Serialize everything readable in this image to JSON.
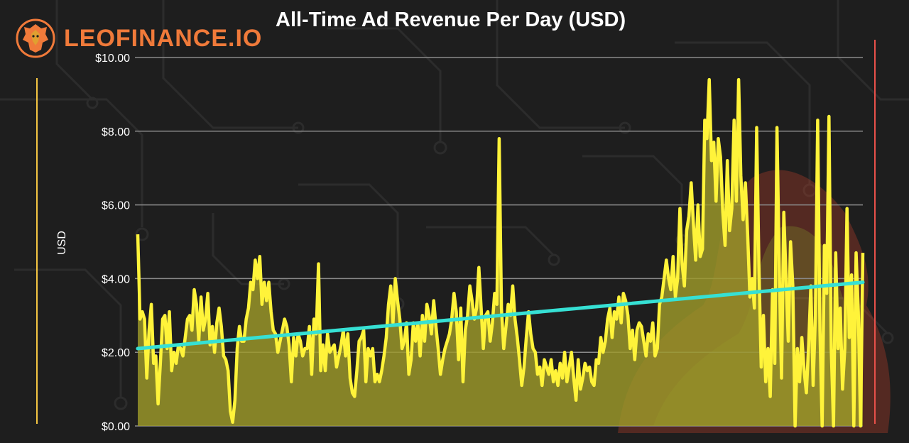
{
  "brand": {
    "name": "LEOFINANCE.IO",
    "logo_icon": "lion-icon"
  },
  "colors": {
    "background": "#1e1e1e",
    "series_line": "#fff33a",
    "series_fill": "#9e9a2a",
    "trend_line": "#36e0d4",
    "frame_start": "#f4c542",
    "frame_end": "#e8504a",
    "brand_text": "#f07a3a"
  },
  "chart_data": {
    "type": "area",
    "title": "All-Time Ad Revenue Per Day (USD)",
    "xlabel": "",
    "ylabel": "USD",
    "ylim": [
      0,
      10
    ],
    "yticks": [
      "$0.00",
      "$2.00",
      "$4.00",
      "$6.00",
      "$8.00",
      "$10.00"
    ],
    "grid": true,
    "legend": "none",
    "series": [
      {
        "values": [
          5.2,
          2.9,
          3.1,
          2.9,
          1.3,
          2.6,
          3.3,
          1.7,
          1.9,
          0.6,
          1.7,
          2.9,
          3.0,
          2.1,
          3.1,
          1.5,
          2.0,
          1.7,
          2.2,
          2.1,
          1.9,
          2.4,
          2.9,
          3.0,
          2.6,
          3.7,
          3.3,
          2.3,
          3.5,
          2.6,
          2.9,
          3.6,
          2.2,
          2.7,
          2.0,
          2.8,
          3.2,
          2.7,
          1.9,
          1.8,
          1.5,
          0.4,
          0.1,
          0.7,
          2.1,
          2.7,
          2.3,
          2.3,
          2.9,
          3.2,
          3.9,
          3.7,
          4.5,
          4.0,
          4.6,
          3.3,
          3.9,
          3.4,
          3.9,
          3.1,
          2.6,
          2.5,
          2.0,
          2.3,
          2.6,
          2.9,
          2.7,
          2.2,
          1.2,
          2.4,
          1.9,
          2.5,
          2.3,
          1.9,
          2.1,
          2.1,
          2.7,
          1.4,
          2.9,
          2.5,
          4.4,
          1.5,
          2.2,
          1.5,
          2.5,
          2.0,
          2.1,
          2.2,
          1.6,
          1.9,
          2.2,
          2.6,
          1.9,
          2.5,
          1.3,
          0.9,
          0.8,
          1.5,
          2.3,
          2.4,
          2.6,
          1.2,
          2.1,
          1.9,
          2.1,
          1.2,
          1.4,
          1.2,
          1.5,
          1.9,
          2.4,
          3.3,
          3.8,
          2.8,
          4.0,
          3.4,
          2.9,
          2.1,
          2.3,
          2.8,
          1.4,
          1.8,
          2.8,
          2.3,
          2.8,
          1.9,
          3.0,
          2.3,
          3.3,
          3.0,
          2.5,
          3.4,
          2.7,
          2.1,
          1.4,
          1.8,
          2.1,
          2.3,
          2.5,
          2.9,
          3.6,
          3.1,
          1.8,
          3.2,
          1.2,
          2.6,
          3.0,
          3.8,
          3.4,
          2.9,
          3.2,
          4.3,
          3.2,
          2.1,
          3.0,
          3.1,
          2.3,
          2.8,
          3.6,
          3.3,
          7.8,
          3.2,
          2.1,
          2.7,
          3.3,
          3.0,
          3.8,
          2.9,
          2.4,
          1.8,
          1.1,
          1.6,
          2.4,
          3.1,
          2.5,
          2.1,
          2.0,
          1.4,
          1.6,
          1.1,
          1.8,
          1.6,
          1.4,
          1.8,
          1.2,
          1.5,
          1.1,
          1.7,
          1.3,
          2.0,
          1.2,
          1.6,
          2.0,
          1.3,
          0.7,
          1.8,
          1.0,
          1.3,
          1.7,
          1.5,
          1.6,
          1.2,
          1.1,
          1.8,
          1.7,
          2.4,
          2.0,
          2.3,
          2.9,
          3.2,
          2.4,
          3.1,
          2.9,
          3.5,
          2.8,
          3.6,
          3.4,
          3.0,
          2.1,
          2.6,
          1.8,
          2.6,
          2.8,
          2.7,
          2.3,
          1.9,
          2.5,
          2.3,
          2.8,
          1.9,
          2.1,
          3.3,
          3.5,
          4.0,
          4.5,
          4.0,
          3.7,
          4.6,
          3.5,
          4.0,
          5.9,
          4.4,
          3.8,
          5.3,
          5.7,
          6.6,
          5.5,
          4.5,
          6.0,
          4.6,
          4.8,
          8.3,
          7.8,
          9.4,
          7.2,
          7.7,
          6.1,
          7.8,
          7.3,
          5.8,
          4.9,
          7.2,
          5.3,
          5.9,
          8.3,
          6.1,
          9.4,
          6.8,
          5.6,
          6.6,
          5.2,
          3.5,
          4.0,
          3.2,
          8.1,
          4.3,
          1.6,
          3.0,
          1.2,
          2.1,
          0.8,
          3.7,
          1.7,
          8.1,
          4.3,
          1.3,
          5.8,
          4.0,
          2.3,
          5.0,
          3.8,
          0.0,
          2.1,
          1.2,
          2.4,
          1.5,
          0.9,
          2.2,
          3.8,
          1.1,
          3.0,
          8.3,
          2.6,
          0.0,
          4.9,
          3.6,
          8.4,
          2.1,
          0.0,
          4.7,
          2.1,
          3.2,
          1.0,
          2.1,
          5.9,
          2.4,
          4.1,
          0.0,
          4.7,
          3.1,
          0.0,
          4.7
        ]
      },
      {
        "values": [
          2.1,
          3.9
        ],
        "note_type": "trend"
      }
    ]
  }
}
